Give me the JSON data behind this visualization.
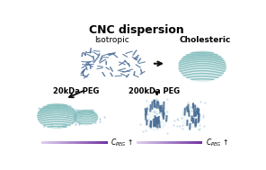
{
  "title": "CNC dispersion",
  "title_fontsize": 9,
  "title_fontweight": "bold",
  "label_isotropic": "Isotropic",
  "label_cholesteric": "Cholesteric",
  "label_20kda": "20kDa PEG",
  "label_200kda": "200kDa PEG",
  "bg_color": "#ffffff",
  "cnc_color": "#4a6d96",
  "cholesteric_color": "#7ab8b8",
  "cholesteric_fill": "#a8d0d0",
  "gradient_start": "#ddd0ee",
  "gradient_end": "#7030a0",
  "arrow_color": "#111111",
  "label_fontsize": 6.5,
  "peg_label_fontsize": 6,
  "cpeg_fontsize": 5.5,
  "figwidth": 2.96,
  "figheight": 1.89,
  "dpi": 100
}
